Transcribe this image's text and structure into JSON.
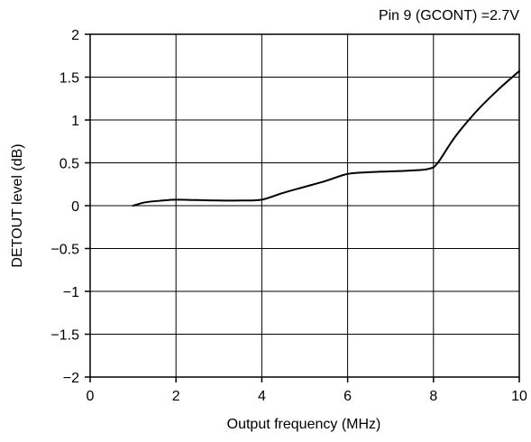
{
  "chart_data": {
    "type": "line",
    "title": "",
    "annotation": "Pin 9 (GCONT) =2.7V",
    "xlabel": "Output frequency (MHz)",
    "ylabel": "DETOUT level (dB)",
    "xlim": [
      0,
      10
    ],
    "ylim": [
      -2,
      2
    ],
    "xticks": [
      0,
      2,
      4,
      6,
      8,
      10
    ],
    "xtick_labels": [
      "0",
      "2",
      "4",
      "6",
      "8",
      "10"
    ],
    "yticks": [
      2,
      1.5,
      1,
      0.5,
      0,
      -0.5,
      -1,
      -1.5,
      -2
    ],
    "ytick_labels": [
      "2",
      "1.5",
      "1",
      "0.5",
      "0",
      "−0.5",
      "−1",
      "−1.5",
      "−2"
    ],
    "grid": true,
    "series": [
      {
        "x": [
          1.0,
          1.3,
          1.7,
          2.0,
          2.5,
          3.0,
          3.5,
          4.0,
          4.5,
          5.0,
          5.5,
          6.0,
          6.5,
          7.0,
          7.5,
          7.9,
          8.1,
          8.5,
          9.0,
          9.5,
          10.0
        ],
        "y": [
          0.0,
          0.04,
          0.06,
          0.07,
          0.065,
          0.06,
          0.06,
          0.07,
          0.15,
          0.22,
          0.29,
          0.37,
          0.39,
          0.4,
          0.41,
          0.43,
          0.5,
          0.8,
          1.1,
          1.35,
          1.57
        ]
      }
    ]
  }
}
